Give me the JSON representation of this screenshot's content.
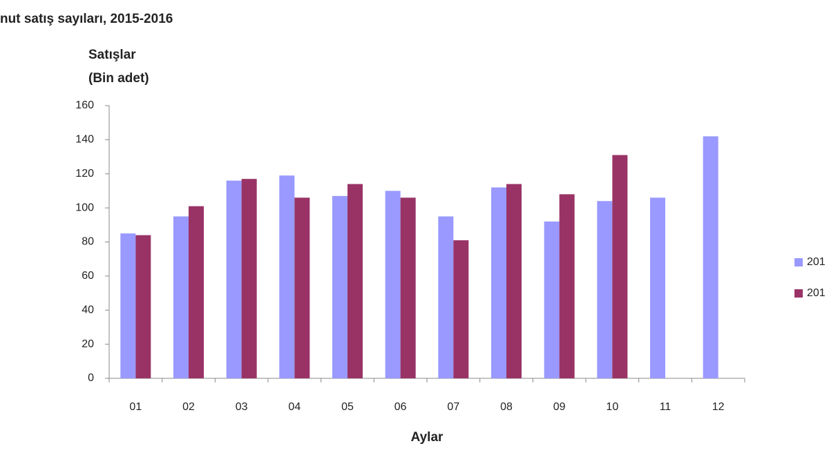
{
  "chart_data": {
    "type": "bar",
    "title": "nut satış sayıları, 2015-2016",
    "y_label": [
      "Satışlar",
      "(Bin adet)"
    ],
    "x_label": "Aylar",
    "categories": [
      "01",
      "02",
      "03",
      "04",
      "05",
      "06",
      "07",
      "08",
      "09",
      "10",
      "11",
      "12"
    ],
    "series": [
      {
        "name": "201",
        "color": "#9999ff",
        "values": [
          85,
          95,
          116,
          119,
          107,
          110,
          95,
          112,
          92,
          104,
          106,
          142
        ]
      },
      {
        "name": "201",
        "color": "#993366",
        "values": [
          84,
          101,
          117,
          106,
          114,
          106,
          81,
          114,
          108,
          131,
          null,
          null
        ]
      }
    ],
    "ylim": [
      0,
      160
    ],
    "yticks": [
      0,
      20,
      40,
      60,
      80,
      100,
      120,
      140,
      160
    ],
    "grid": false,
    "legend": "right"
  }
}
